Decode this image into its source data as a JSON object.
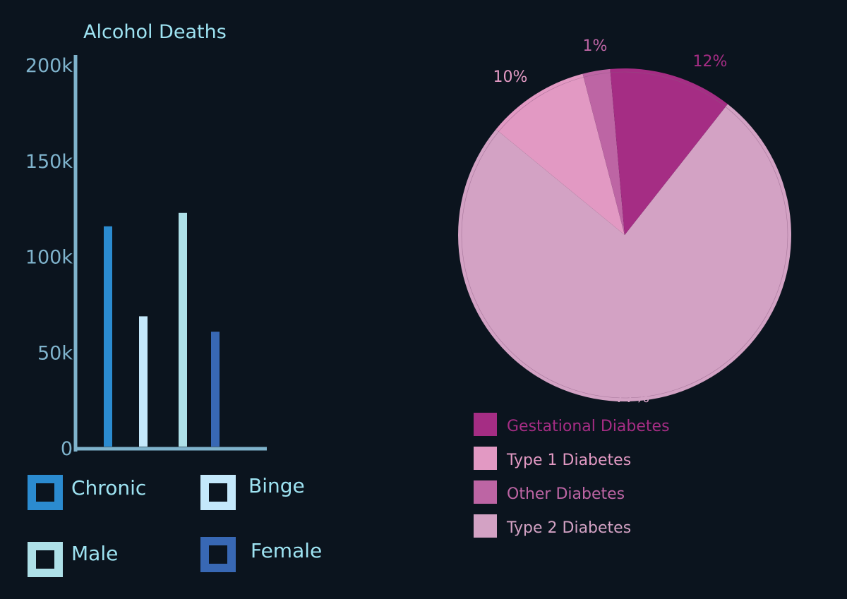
{
  "chart_data": [
    {
      "type": "bar",
      "title": "Alcohol Deaths",
      "categories": [
        "Chronic",
        "Binge",
        "Male",
        "Female"
      ],
      "values": [
        115000,
        68000,
        122000,
        60000
      ],
      "colors": [
        "#2b8bd0",
        "#c4e8fb",
        "#aee0e8",
        "#3868b4"
      ],
      "yticks": [
        "0",
        "50k",
        "100k",
        "150k",
        "200k"
      ],
      "ylim": [
        0,
        200000
      ],
      "grid": false,
      "legend": {
        "placement": "bottom",
        "items": [
          "Chronic",
          "Binge",
          "Male",
          "Female"
        ]
      }
    },
    {
      "type": "pie",
      "categories": [
        "Gestational Diabetes",
        "Type 1 Diabetes",
        "Other Diabetes",
        "Type 2 Diabetes"
      ],
      "values": [
        12,
        10,
        1,
        77
      ],
      "labels": [
        "12%",
        "10%",
        "1%",
        "77%"
      ],
      "colors": [
        "#a52d84",
        "#e299c3",
        "#bd65a4",
        "#d3a2c4"
      ],
      "legend": {
        "placement": "bottom",
        "items": [
          "Gestational Diabetes",
          "Type 1 Diabetes",
          "Other Diabetes",
          "Type 2 Diabetes"
        ]
      }
    }
  ],
  "colors": {
    "background": "#0b141e",
    "axis": "#7fb3cc",
    "title": "#9ee3f2"
  }
}
